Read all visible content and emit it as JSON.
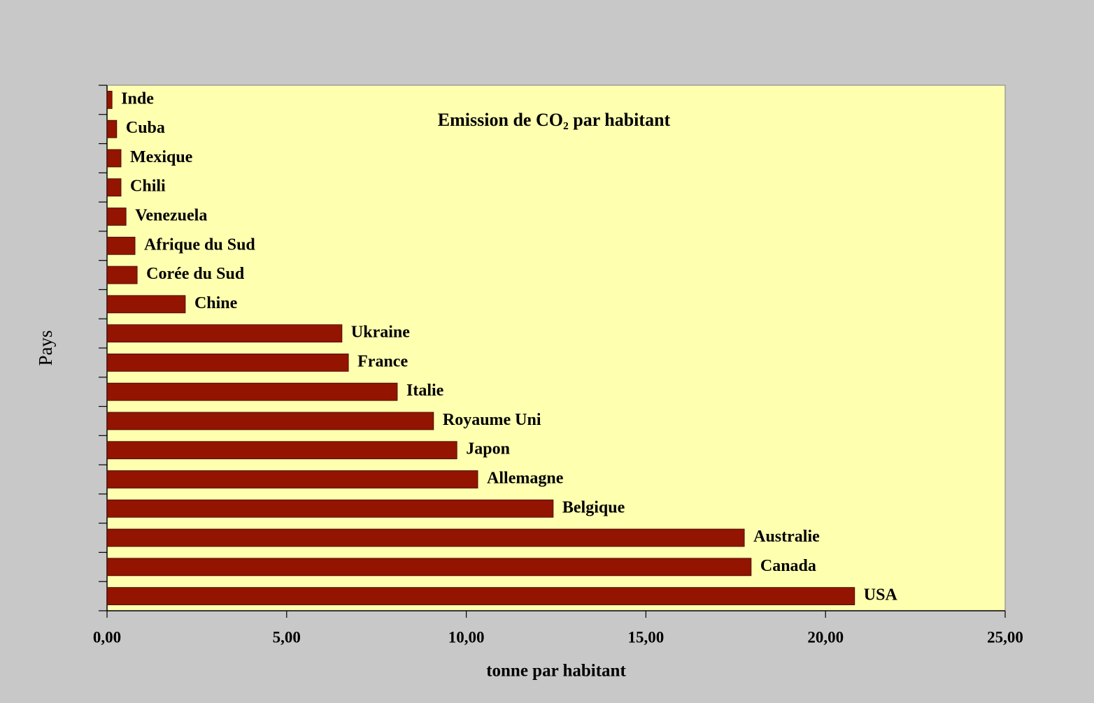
{
  "chart_data": {
    "type": "hbar",
    "title": "Emission de CO₂ par habitant",
    "x_label": "tonne par habitant",
    "y_label": "Pays",
    "categories": [
      "Inde",
      "Cuba",
      "Mexique",
      "Chili",
      "Venezuela",
      "Afrique du Sud",
      "Corée du Sud",
      "Chine",
      "Ukraine",
      "France",
      "Italie",
      "Royaume Uni",
      "Japon",
      "Allemagne",
      "Belgique",
      "Australie",
      "Canada",
      "USA"
    ],
    "values": [
      0.14,
      0.27,
      0.39,
      0.39,
      0.53,
      0.78,
      0.84,
      2.18,
      6.54,
      6.72,
      8.08,
      9.09,
      9.74,
      10.32,
      12.42,
      17.74,
      17.93,
      20.81
    ],
    "color": "#931400",
    "xlim": [
      0,
      25
    ],
    "xticks": [
      {
        "value": 0,
        "label": "0,00"
      },
      {
        "value": 5,
        "label": "5,00"
      },
      {
        "value": 10,
        "label": "10,00"
      },
      {
        "value": 15,
        "label": "15,00"
      },
      {
        "value": 20,
        "label": "20,00"
      },
      {
        "value": 25,
        "label": "25,00"
      }
    ]
  }
}
